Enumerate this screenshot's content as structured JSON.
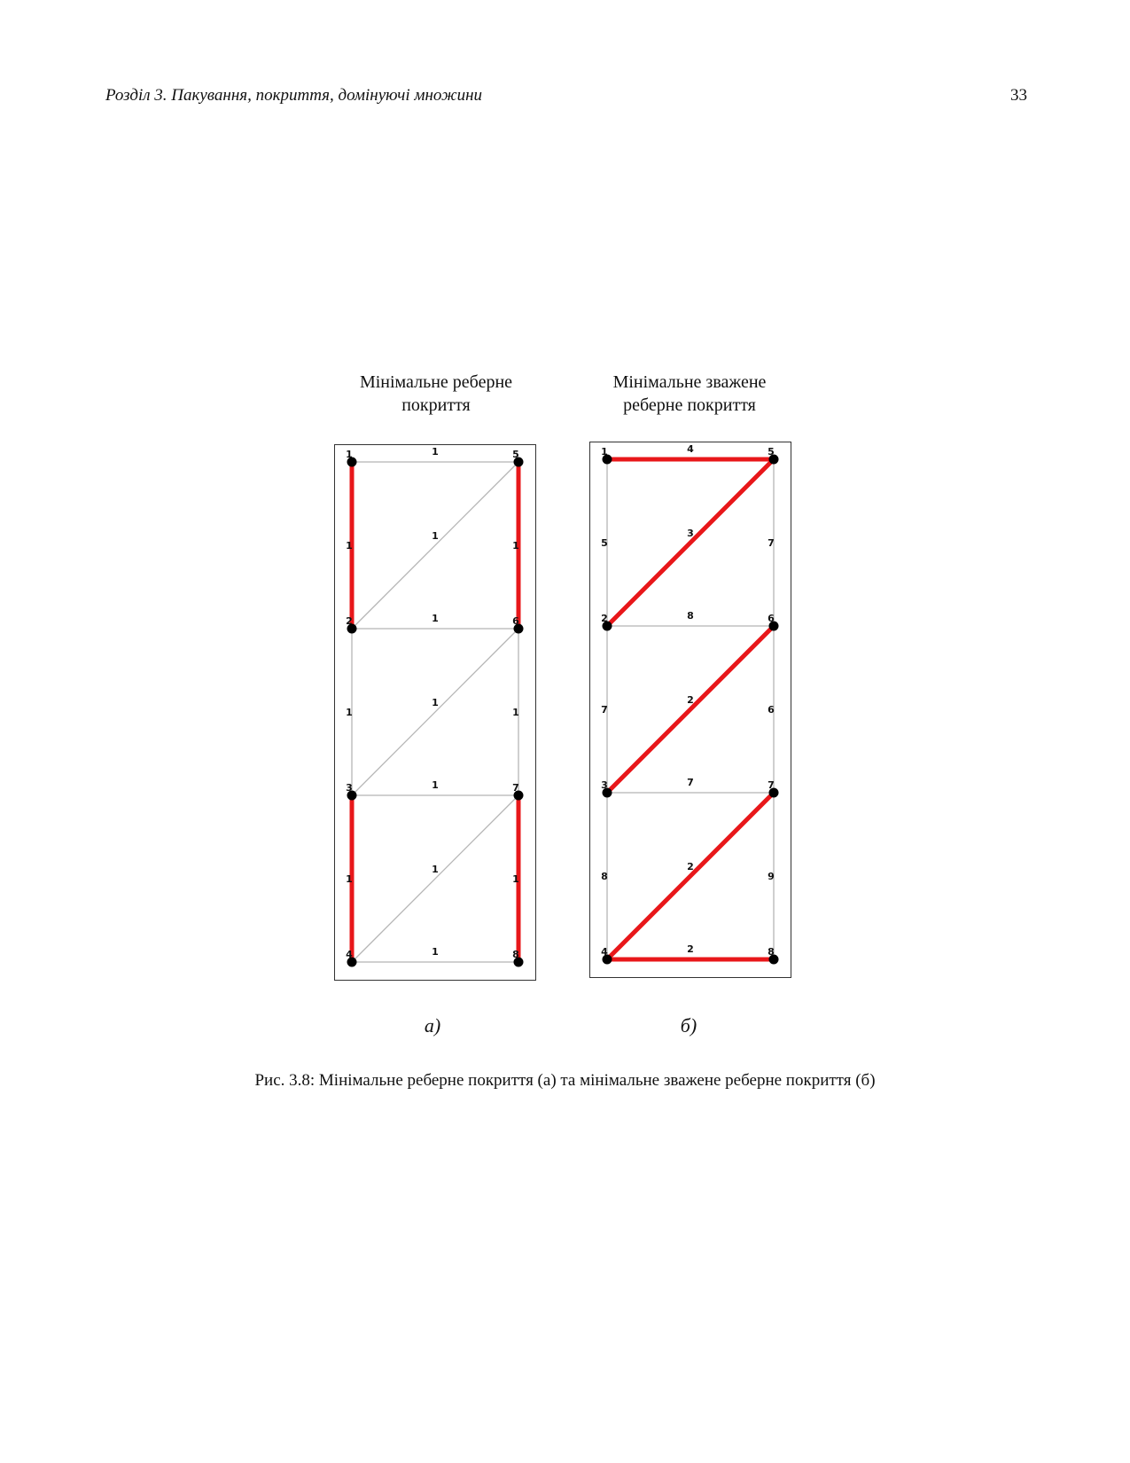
{
  "header": {
    "running_title": "Розділ 3. Пакування, покриття, домінуючі множини",
    "page_number": "33"
  },
  "figure": {
    "caption": "Рис. 3.8: Мінімальне реберне покриття (а) та мінімальне зважене реберне покриття (б)",
    "panels": [
      {
        "id": "a",
        "title_lines": [
          "Мінімальне реберне",
          "покриття"
        ],
        "label": "а)",
        "vertices": [
          "1",
          "2",
          "3",
          "4",
          "5",
          "6",
          "7",
          "8"
        ],
        "edges": [
          {
            "from": "1",
            "to": "5",
            "weight": "1",
            "in_cover": false
          },
          {
            "from": "1",
            "to": "2",
            "weight": "1",
            "in_cover": true
          },
          {
            "from": "2",
            "to": "5",
            "weight": "1",
            "in_cover": false
          },
          {
            "from": "5",
            "to": "6",
            "weight": "1",
            "in_cover": true
          },
          {
            "from": "2",
            "to": "6",
            "weight": "1",
            "in_cover": false
          },
          {
            "from": "2",
            "to": "3",
            "weight": "1",
            "in_cover": false
          },
          {
            "from": "3",
            "to": "6",
            "weight": "1",
            "in_cover": false
          },
          {
            "from": "6",
            "to": "7",
            "weight": "1",
            "in_cover": false
          },
          {
            "from": "3",
            "to": "7",
            "weight": "1",
            "in_cover": false
          },
          {
            "from": "3",
            "to": "4",
            "weight": "1",
            "in_cover": true
          },
          {
            "from": "4",
            "to": "7",
            "weight": "1",
            "in_cover": false
          },
          {
            "from": "7",
            "to": "8",
            "weight": "1",
            "in_cover": true
          },
          {
            "from": "4",
            "to": "8",
            "weight": "1",
            "in_cover": false
          }
        ]
      },
      {
        "id": "b",
        "title_lines": [
          "Мінімальне зважене",
          "реберне покриття"
        ],
        "label": "б)",
        "vertices": [
          "1",
          "2",
          "3",
          "4",
          "5",
          "6",
          "7",
          "8"
        ],
        "edges": [
          {
            "from": "1",
            "to": "5",
            "weight": "4",
            "in_cover": true
          },
          {
            "from": "1",
            "to": "2",
            "weight": "5",
            "in_cover": false
          },
          {
            "from": "2",
            "to": "5",
            "weight": "3",
            "in_cover": true
          },
          {
            "from": "5",
            "to": "6",
            "weight": "7",
            "in_cover": false
          },
          {
            "from": "2",
            "to": "6",
            "weight": "8",
            "in_cover": false
          },
          {
            "from": "2",
            "to": "3",
            "weight": "7",
            "in_cover": false
          },
          {
            "from": "3",
            "to": "6",
            "weight": "2",
            "in_cover": true
          },
          {
            "from": "6",
            "to": "7",
            "weight": "6",
            "in_cover": false
          },
          {
            "from": "3",
            "to": "7",
            "weight": "7",
            "in_cover": false
          },
          {
            "from": "3",
            "to": "4",
            "weight": "8",
            "in_cover": false
          },
          {
            "from": "4",
            "to": "7",
            "weight": "2",
            "in_cover": true
          },
          {
            "from": "7",
            "to": "8",
            "weight": "9",
            "in_cover": false
          },
          {
            "from": "4",
            "to": "8",
            "weight": "2",
            "in_cover": true
          }
        ]
      }
    ],
    "colors": {
      "cover_edge": "#e8171a",
      "plain_edge": "#b5b5b5",
      "vertex": "#000000"
    }
  }
}
